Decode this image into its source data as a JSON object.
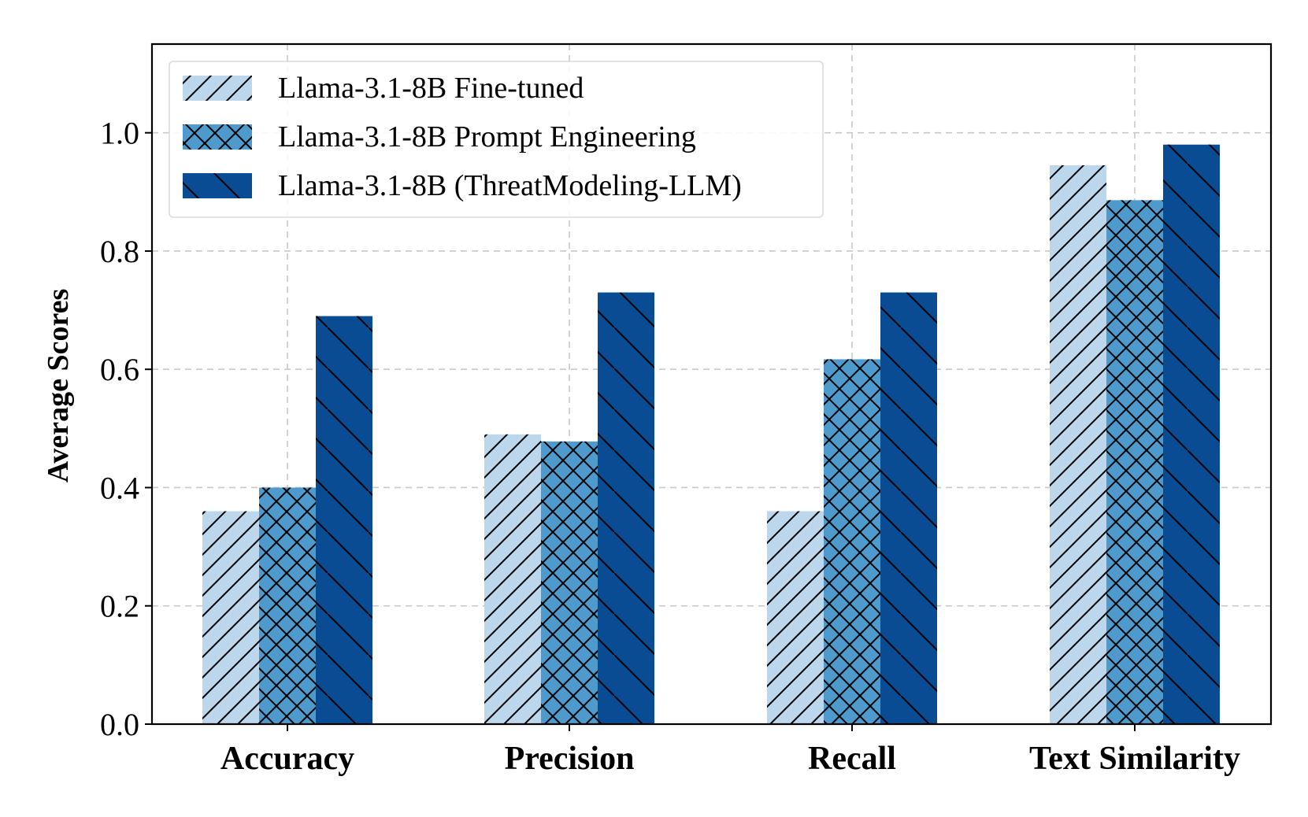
{
  "chart_data": {
    "type": "bar",
    "title": "",
    "xlabel": "",
    "ylabel": "Average Scores",
    "ylim": [
      0,
      1.15
    ],
    "yticks": [
      "0.0",
      "0.2",
      "0.4",
      "0.6",
      "0.8",
      "1.0"
    ],
    "grid": true,
    "legend_position": "top-left",
    "categories": [
      "Accuracy",
      "Precision",
      "Recall",
      "Text Similarity"
    ],
    "series": [
      {
        "name": "Llama-3.1-8B Fine-tuned",
        "values": [
          0.36,
          0.49,
          0.36,
          0.945
        ],
        "color": "#bcd6ec",
        "hatch": "forward-diagonal"
      },
      {
        "name": "Llama-3.1-8B Prompt Engineering",
        "values": [
          0.4,
          0.478,
          0.617,
          0.886
        ],
        "color": "#4f9acd",
        "hatch": "cross"
      },
      {
        "name": "Llama-3.1-8B (ThreatModeling-LLM)",
        "values": [
          0.69,
          0.73,
          0.73,
          0.98
        ],
        "color": "#0a4c94",
        "hatch": "back-diagonal"
      }
    ]
  }
}
